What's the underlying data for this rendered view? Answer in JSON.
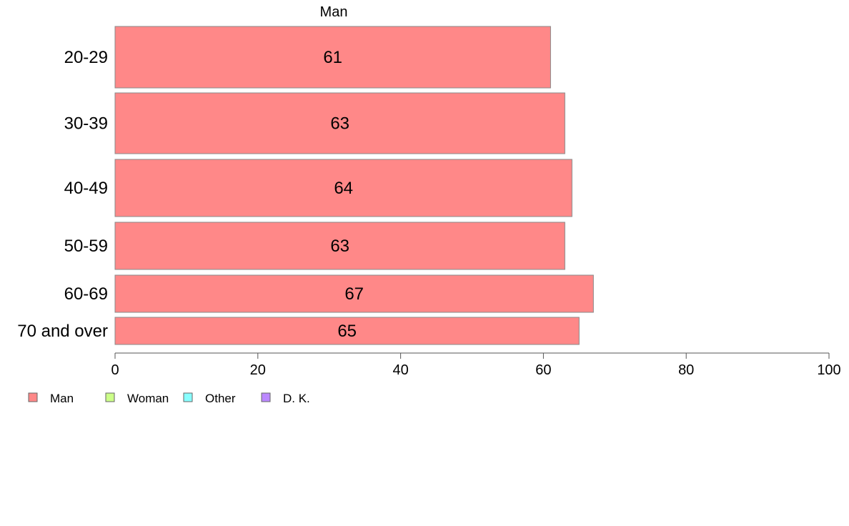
{
  "chart_data": {
    "type": "bar",
    "orientation": "horizontal",
    "categories": [
      "20-29",
      "30-39",
      "40-49",
      "50-59",
      "60-69",
      "70 and over"
    ],
    "series": [
      {
        "name": "Man",
        "values": [
          61,
          63,
          64,
          63,
          67,
          65
        ],
        "color": "#ff8888"
      }
    ],
    "data_labels": [
      "61",
      "63",
      "64",
      "63",
      "67",
      "65"
    ],
    "series_label": "Man",
    "xlim": [
      0,
      100
    ],
    "xticks": [
      0,
      20,
      40,
      60,
      80,
      100
    ],
    "grid": false,
    "legend": {
      "position": "bottom-left",
      "entries": [
        {
          "label": "Man",
          "color": "#ff8888"
        },
        {
          "label": "Woman",
          "color": "#ccff88"
        },
        {
          "label": "Other",
          "color": "#88ffff"
        },
        {
          "label": "D. K.",
          "color": "#bb88ff"
        }
      ]
    }
  }
}
